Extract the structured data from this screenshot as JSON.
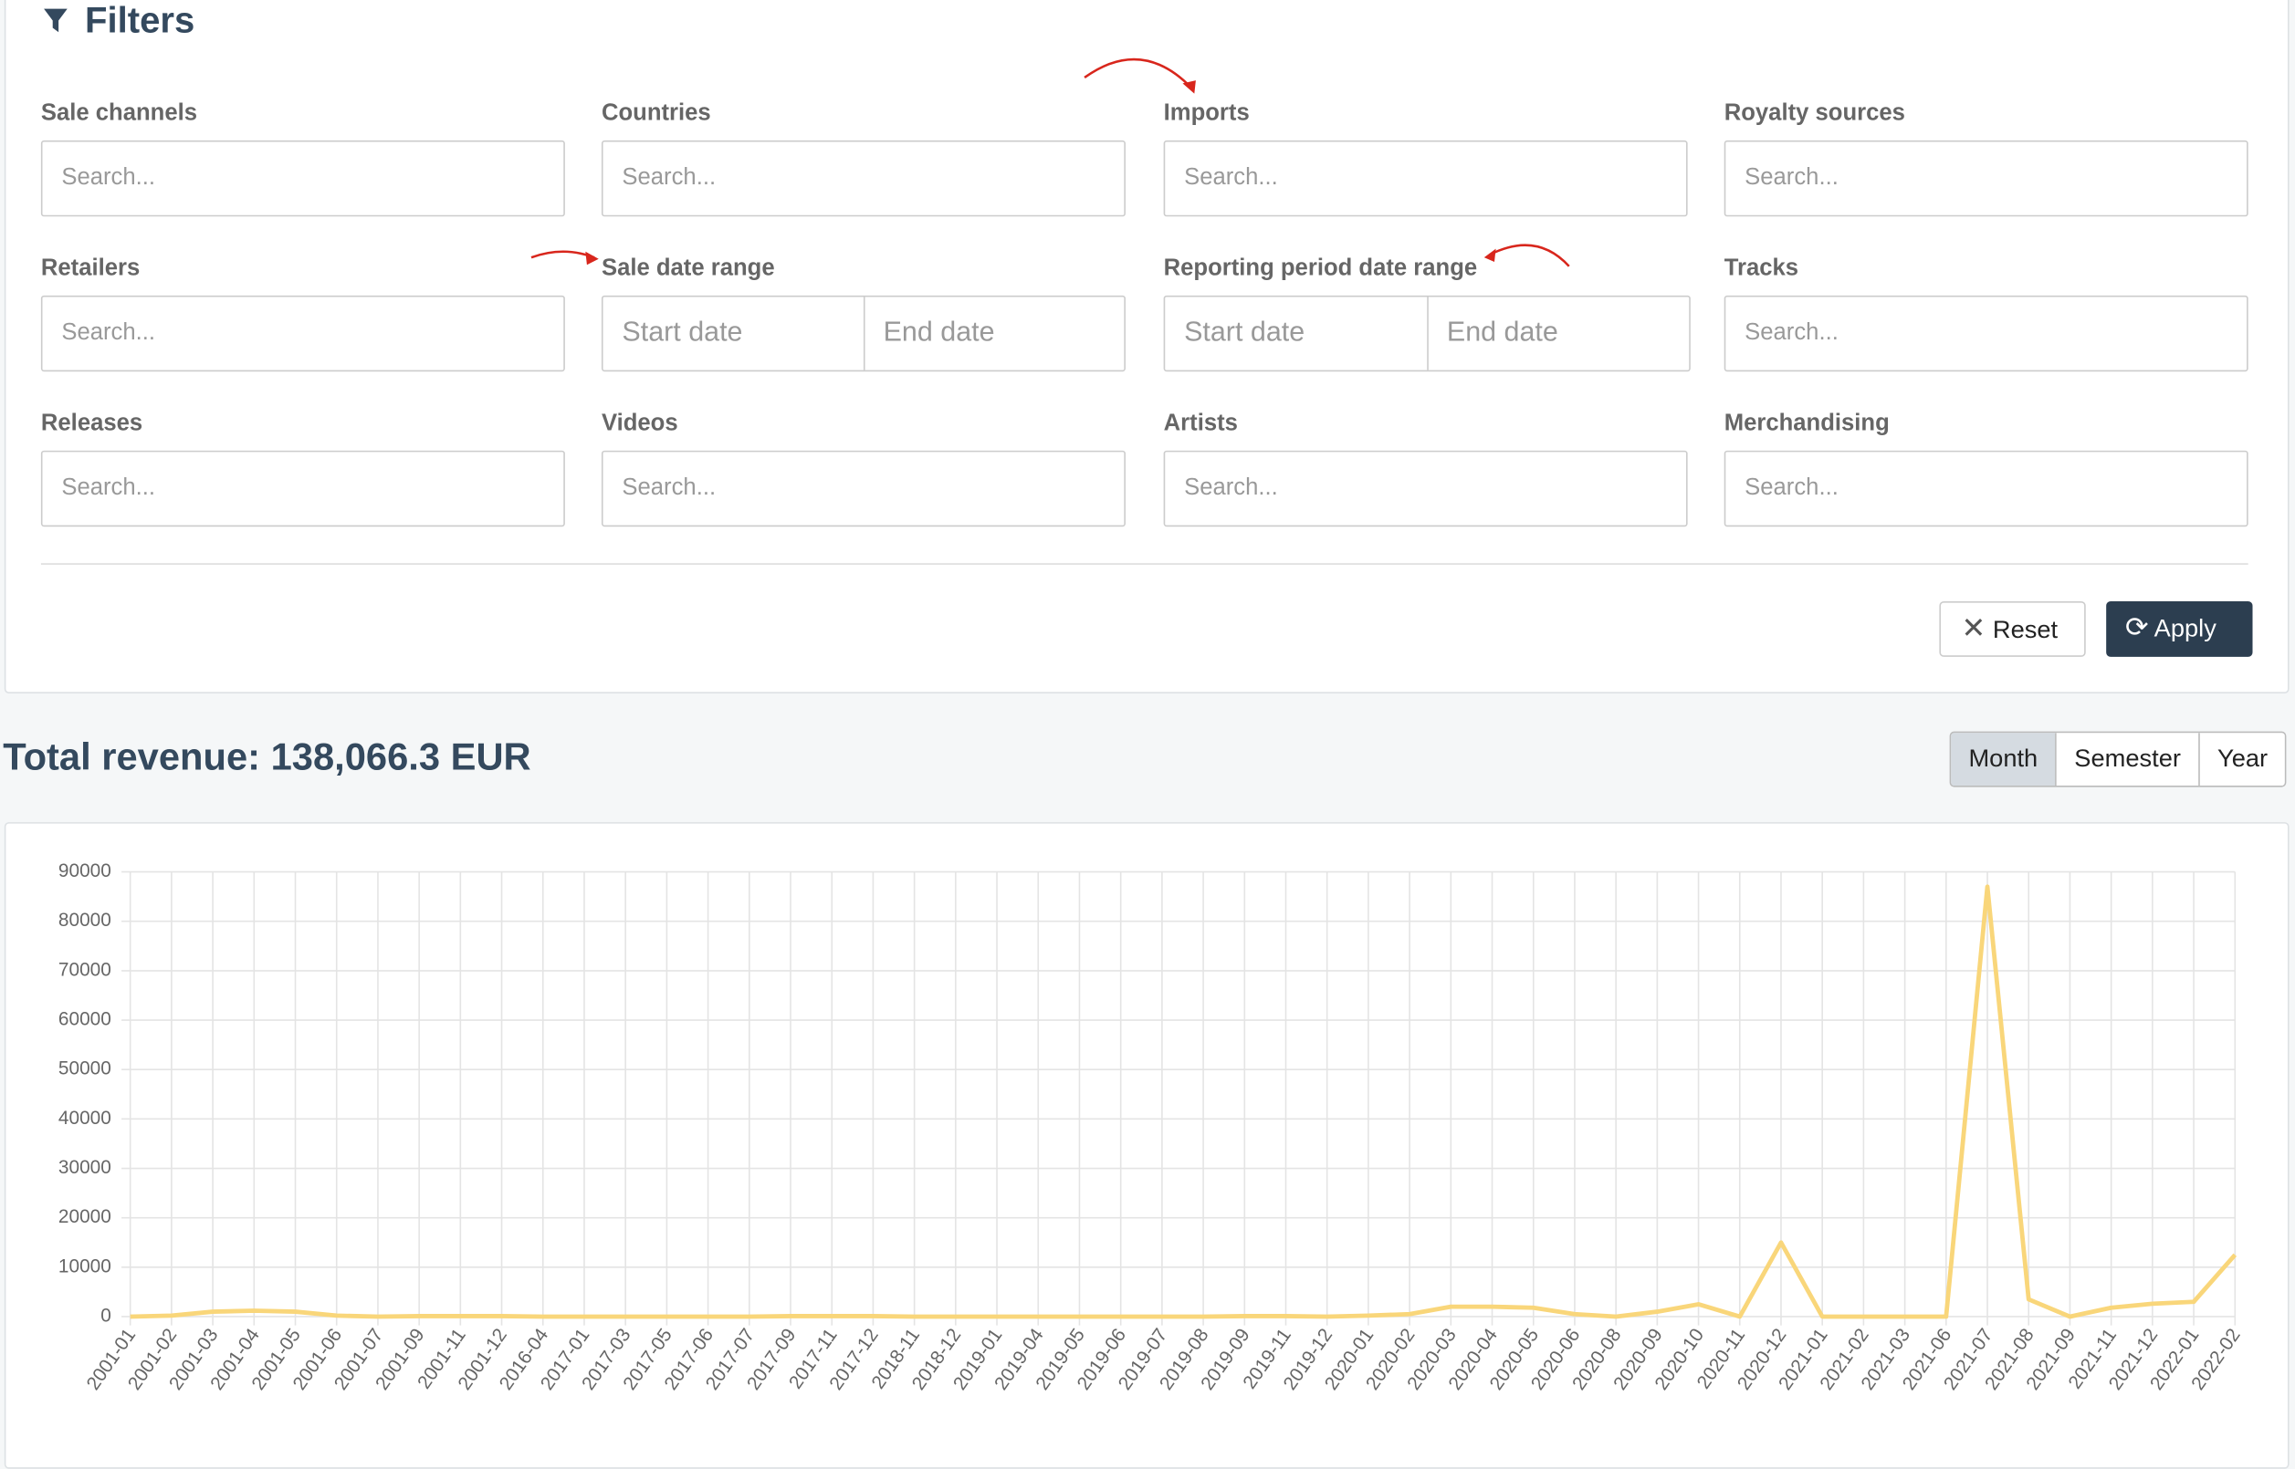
{
  "filters": {
    "title": "Filters",
    "fields": [
      {
        "label": "Sale channels",
        "placeholders": [
          "Search..."
        ]
      },
      {
        "label": "Countries",
        "placeholders": [
          "Search..."
        ]
      },
      {
        "label": "Imports",
        "placeholders": [
          "Search..."
        ]
      },
      {
        "label": "Royalty sources",
        "placeholders": [
          "Search..."
        ]
      },
      {
        "label": "Retailers",
        "placeholders": [
          "Search..."
        ]
      },
      {
        "label": "Sale date range",
        "placeholders": [
          "Start date",
          "End date"
        ]
      },
      {
        "label": "Reporting period date range",
        "placeholders": [
          "Start date",
          "End date"
        ]
      },
      {
        "label": "Tracks",
        "placeholders": [
          "Search..."
        ]
      },
      {
        "label": "Releases",
        "placeholders": [
          "Search..."
        ]
      },
      {
        "label": "Videos",
        "placeholders": [
          "Search..."
        ]
      },
      {
        "label": "Artists",
        "placeholders": [
          "Search..."
        ]
      },
      {
        "label": "Merchandising",
        "placeholders": [
          "Search..."
        ]
      }
    ],
    "reset": "Reset",
    "apply": "Apply"
  },
  "summary": {
    "title": "Total revenue: 138,066.3 EUR"
  },
  "period_buttons": [
    "Month",
    "Semester",
    "Year"
  ],
  "chart_data": {
    "type": "line",
    "categories": [
      "2001-01",
      "2001-02",
      "2001-03",
      "2001-04",
      "2001-05",
      "2001-06",
      "2001-07",
      "2001-09",
      "2001-11",
      "2001-12",
      "2016-04",
      "2017-01",
      "2017-03",
      "2017-05",
      "2017-06",
      "2017-07",
      "2017-09",
      "2017-11",
      "2017-12",
      "2018-11",
      "2018-12",
      "2019-01",
      "2019-04",
      "2019-05",
      "2019-06",
      "2019-07",
      "2019-08",
      "2019-09",
      "2019-11",
      "2019-12",
      "2020-01",
      "2020-02",
      "2020-03",
      "2020-04",
      "2020-05",
      "2020-06",
      "2020-08",
      "2020-09",
      "2020-10",
      "2020-11",
      "2020-12",
      "2021-01",
      "2021-02",
      "2021-03",
      "2021-06",
      "2021-07",
      "2021-08",
      "2021-09",
      "2021-11",
      "2021-12",
      "2022-01",
      "2022-02"
    ],
    "values": [
      0,
      200,
      1000,
      1200,
      1000,
      200,
      0,
      100,
      100,
      100,
      0,
      0,
      0,
      0,
      0,
      0,
      100,
      100,
      100,
      0,
      0,
      0,
      0,
      0,
      0,
      0,
      0,
      100,
      100,
      0,
      200,
      500,
      2000,
      2000,
      1800,
      500,
      0,
      1000,
      2500,
      0,
      15000,
      0,
      0,
      0,
      0,
      87000,
      3500,
      0,
      1800,
      2600,
      3000,
      12500
    ],
    "color": "#f9d67a",
    "ylim": [
      0,
      90000
    ],
    "yticks": [
      0,
      10000,
      20000,
      30000,
      40000,
      50000,
      60000,
      70000,
      80000,
      90000
    ],
    "grid": true
  }
}
